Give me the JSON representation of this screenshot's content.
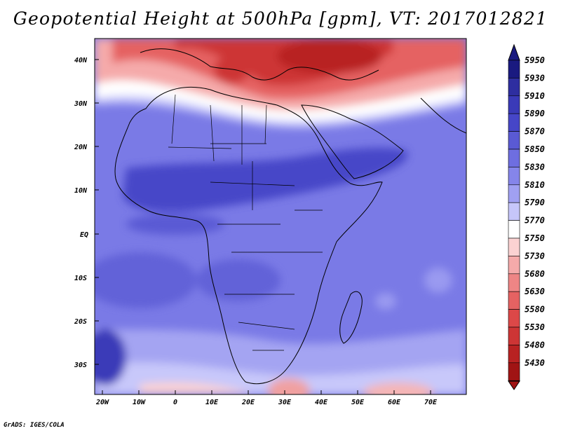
{
  "title": "Geopotential Height at 500hPa [gpm], VT: 2017012821",
  "credit": "GrADS: IGES/COLA",
  "map": {
    "lon_ticks": [
      "20W",
      "10W",
      "0",
      "10E",
      "20E",
      "30E",
      "40E",
      "50E",
      "60E",
      "70E"
    ],
    "lat_ticks": [
      "40N",
      "30N",
      "20N",
      "10N",
      "EQ",
      "10S",
      "20S",
      "30S"
    ]
  },
  "colorbar": {
    "levels": [
      "5950",
      "5930",
      "5910",
      "5890",
      "5870",
      "5850",
      "5830",
      "5810",
      "5790",
      "5770",
      "5750",
      "5730",
      "5680",
      "5630",
      "5580",
      "5530",
      "5480",
      "5430"
    ],
    "colors": [
      "#1a1a80",
      "#2e2ea0",
      "#3a3ab8",
      "#4646c8",
      "#5a5ad4",
      "#6e6ee0",
      "#8585ea",
      "#a0a0f2",
      "#c6c6fa",
      "#ffffff",
      "#fbd2d2",
      "#f5aaaa",
      "#ee8585",
      "#e56262",
      "#dc4848",
      "#cd3535",
      "#b82222",
      "#a01414"
    ]
  }
}
